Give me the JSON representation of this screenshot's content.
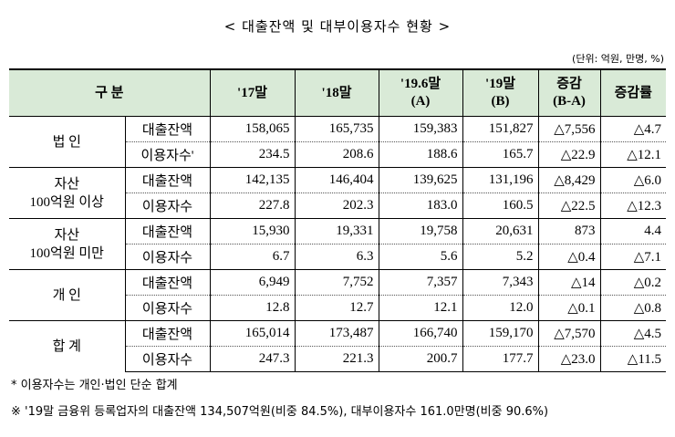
{
  "title": "< 대출잔액 및 대부이용자수 현황 >",
  "unit": "(단위: 억원, 만명, %)",
  "table": {
    "header": [
      [
        "구 분"
      ],
      [
        "'17말"
      ],
      [
        "'18말"
      ],
      [
        "'19.6말",
        "(A)"
      ],
      [
        "'19말",
        "(B)"
      ],
      [
        "증감",
        "(B-A)"
      ],
      [
        "증감률"
      ]
    ],
    "groups": [
      {
        "label": [
          "법 인"
        ],
        "rows": [
          {
            "item": "대출잔액",
            "values": [
              "158,065",
              "165,735",
              "159,383",
              "151,827",
              "△7,556",
              "△4.7"
            ]
          },
          {
            "item": "이용자수'",
            "values": [
              "234.5",
              "208.6",
              "188.6",
              "165.7",
              "△22.9",
              "△12.1"
            ]
          }
        ]
      },
      {
        "label": [
          "자산",
          "100억원 이상"
        ],
        "rows": [
          {
            "item": "대출잔액",
            "values": [
              "142,135",
              "146,404",
              "139,625",
              "131,196",
              "△8,429",
              "△6.0"
            ]
          },
          {
            "item": "이용자수",
            "values": [
              "227.8",
              "202.3",
              "183.0",
              "160.5",
              "△22.5",
              "△12.3"
            ]
          }
        ]
      },
      {
        "label": [
          "자산",
          "100억원 미만"
        ],
        "rows": [
          {
            "item": "대출잔액",
            "values": [
              "15,930",
              "19,331",
              "19,758",
              "20,631",
              "873",
              "4.4"
            ]
          },
          {
            "item": "이용자수",
            "values": [
              "6.7",
              "6.3",
              "5.6",
              "5.2",
              "△0.4",
              "△7.1"
            ]
          }
        ]
      },
      {
        "label": [
          "개 인"
        ],
        "rows": [
          {
            "item": "대출잔액",
            "values": [
              "6,949",
              "7,752",
              "7,357",
              "7,343",
              "△14",
              "△0.2"
            ]
          },
          {
            "item": "이용자수",
            "values": [
              "12.8",
              "12.7",
              "12.1",
              "12.0",
              "△0.1",
              "△0.8"
            ]
          }
        ]
      },
      {
        "label": [
          "합 계"
        ],
        "rows": [
          {
            "item": "대출잔액",
            "values": [
              "165,014",
              "173,487",
              "166,740",
              "159,170",
              "△7,570",
              "△4.5"
            ]
          },
          {
            "item": "이용자수",
            "values": [
              "247.3",
              "221.3",
              "200.7",
              "177.7",
              "△23.0",
              "△11.5"
            ]
          }
        ]
      }
    ]
  },
  "notes": [
    "* 이용자수는 개인·법인 단순 합계",
    "※ '19말 금융위 등록업자의 대출잔액 134,507억원(비중 84.5%), 대부이용자수 161.0만명(비중 90.6%)"
  ]
}
